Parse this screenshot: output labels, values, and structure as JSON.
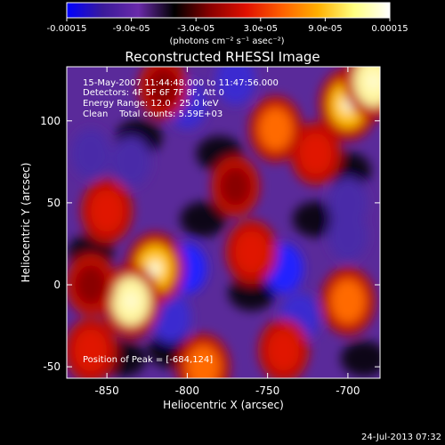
{
  "chart_data": {
    "type": "heatmap",
    "title": "Reconstructed RHESSI Image",
    "xlabel": "Heliocentric X (arcsec)",
    "ylabel": "Heliocentric Y (arcsec)",
    "xlim": [
      -875,
      -680
    ],
    "ylim": [
      -57,
      133
    ],
    "x_ticks": [
      -850,
      -800,
      -750,
      -700
    ],
    "y_ticks": [
      -50,
      0,
      50,
      100
    ],
    "colormap": [
      "#0000ff",
      "#3a1a9a",
      "#6a2aaa",
      "#000000",
      "#8a0000",
      "#e01000",
      "#ff6000",
      "#ffb000",
      "#ffff80",
      "#ffffff"
    ],
    "colorbar": {
      "range": [
        -0.00015,
        0.00015
      ],
      "tick_labels": [
        "-0.00015",
        "-9.0e-05",
        "-3.0e-05",
        "3.0e-05",
        "9.0e-05",
        "0.00015"
      ],
      "tick_values": [
        -0.00015,
        -9e-05,
        -3e-05,
        3e-05,
        9e-05,
        0.00015
      ],
      "unit_label": "(photons cm⁻² s⁻¹ asec⁻²)"
    },
    "annotations": {
      "time": "15-May-2007 11:44:48.000 to 11:47:56.000",
      "detectors": "Detectors: 4F 5F 6F 7F 8F, Att 0",
      "energy": "Energy Range: 12.0 - 25.0 keV",
      "clean": "Clean    Total counts: 5.59E+03",
      "peak": "Position of Peak = [-684,124]"
    },
    "hotspots": [
      {
        "x": -820,
        "y": 10,
        "value": 0.00013
      },
      {
        "x": -835,
        "y": -10,
        "value": 0.00014
      },
      {
        "x": -850,
        "y": 45,
        "value": 8e-05
      },
      {
        "x": -745,
        "y": 95,
        "value": 9e-05
      },
      {
        "x": -700,
        "y": 110,
        "value": 0.00013
      },
      {
        "x": -684,
        "y": 124,
        "value": 0.00015
      },
      {
        "x": -720,
        "y": 80,
        "value": 7e-05
      },
      {
        "x": -760,
        "y": 20,
        "value": 8e-05
      },
      {
        "x": -700,
        "y": -10,
        "value": 0.0001
      },
      {
        "x": -790,
        "y": -50,
        "value": 9e-05
      },
      {
        "x": -740,
        "y": -40,
        "value": 7e-05
      },
      {
        "x": -860,
        "y": -40,
        "value": 8e-05
      },
      {
        "x": -860,
        "y": 0,
        "value": 6e-05
      },
      {
        "x": -815,
        "y": 120,
        "value": 6e-05
      },
      {
        "x": -770,
        "y": 60,
        "value": 5e-05
      }
    ],
    "coldspots": [
      {
        "x": -800,
        "y": 10,
        "value": -0.00012
      },
      {
        "x": -810,
        "y": -20,
        "value": -0.0001
      },
      {
        "x": -740,
        "y": 10,
        "value": -0.00011
      },
      {
        "x": -730,
        "y": -20,
        "value": -0.0001
      },
      {
        "x": -800,
        "y": 110,
        "value": -9e-05
      },
      {
        "x": -770,
        "y": 125,
        "value": -8e-05
      },
      {
        "x": -860,
        "y": 80,
        "value": -7e-05
      },
      {
        "x": -700,
        "y": 50,
        "value": -6e-05
      },
      {
        "x": -835,
        "y": 75,
        "value": -6e-05
      },
      {
        "x": -700,
        "y": 30,
        "value": -5e-05
      }
    ]
  },
  "footer": {
    "timestamp": "24-Jul-2013 07:32"
  }
}
